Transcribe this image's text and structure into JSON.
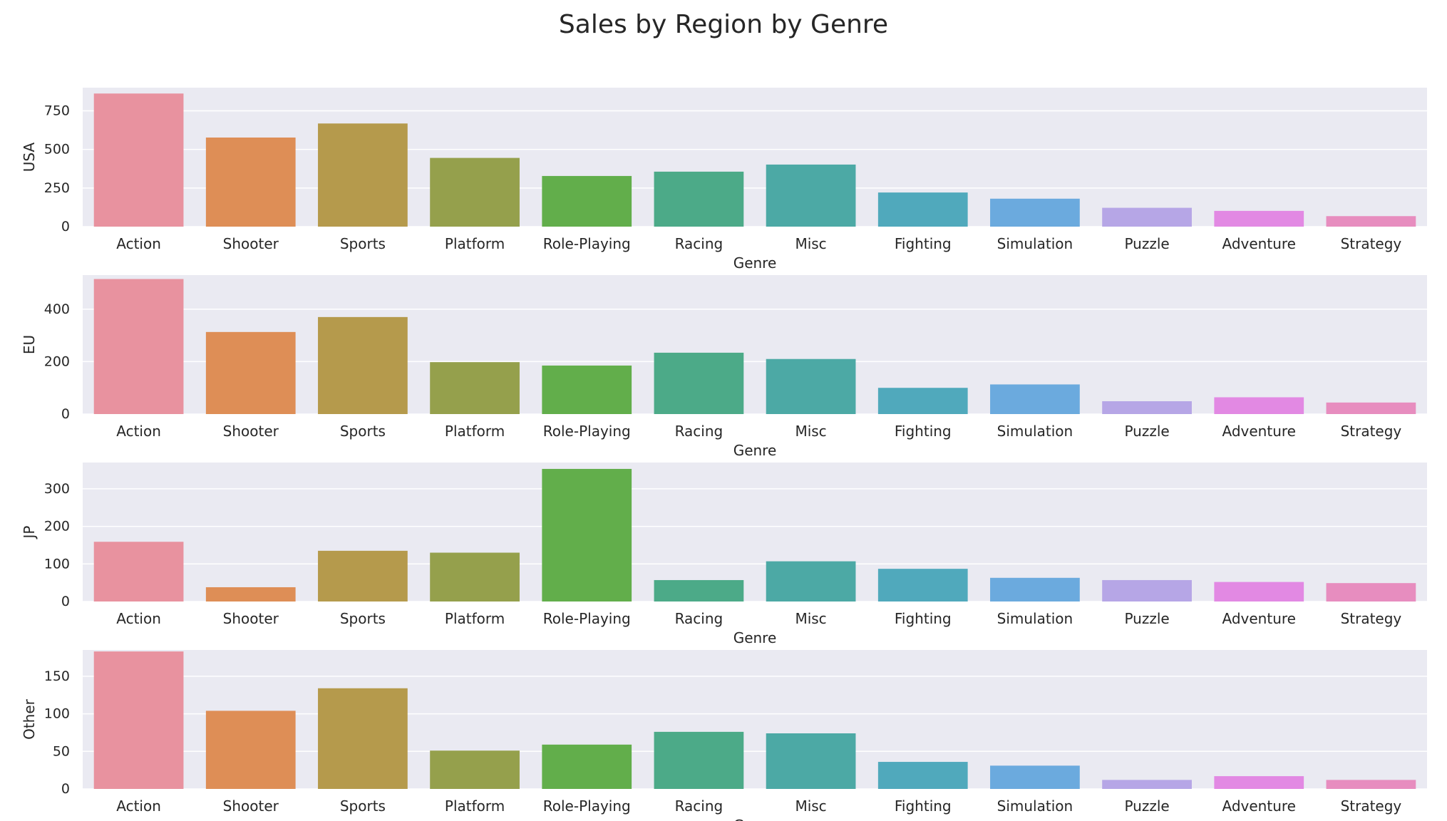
{
  "chart_data": {
    "type": "bar",
    "title": "Sales by Region by Genre",
    "categories": [
      "Action",
      "Shooter",
      "Sports",
      "Platform",
      "Role-Playing",
      "Racing",
      "Misc",
      "Fighting",
      "Simulation",
      "Puzzle",
      "Adventure",
      "Strategy"
    ],
    "bar_colors": [
      "#e8929f",
      "#de8e56",
      "#b59a4c",
      "#95a04c",
      "#62ae4b",
      "#4caa88",
      "#4ca9a5",
      "#50a9bc",
      "#6baade",
      "#b6a6e6",
      "#e289e3",
      "#e78dbf"
    ],
    "background_color": "#eaeaf2",
    "grid": true,
    "panels": [
      {
        "ylabel": "USA",
        "xlabel": "Genre",
        "ylim": [
          0,
          900
        ],
        "yticks": [
          0,
          250,
          500,
          750
        ],
        "values": [
          862,
          577,
          668,
          445,
          328,
          356,
          402,
          221,
          181,
          122,
          102,
          68
        ]
      },
      {
        "ylabel": "EU",
        "xlabel": "Genre",
        "ylim": [
          0,
          530
        ],
        "yticks": [
          0,
          200,
          400
        ],
        "values": [
          515,
          313,
          370,
          198,
          185,
          234,
          210,
          100,
          113,
          49,
          64,
          44
        ]
      },
      {
        "ylabel": "JP",
        "xlabel": "Genre",
        "ylim": [
          0,
          370
        ],
        "yticks": [
          0,
          100,
          200,
          300
        ],
        "values": [
          159,
          38,
          135,
          130,
          353,
          57,
          107,
          87,
          63,
          57,
          52,
          49
        ]
      },
      {
        "ylabel": "Other",
        "xlabel": "Genre",
        "ylim": [
          0,
          185
        ],
        "yticks": [
          0,
          50,
          100,
          150
        ],
        "values": [
          183,
          104,
          134,
          51,
          59,
          76,
          74,
          36,
          31,
          12,
          17,
          12
        ]
      }
    ]
  }
}
